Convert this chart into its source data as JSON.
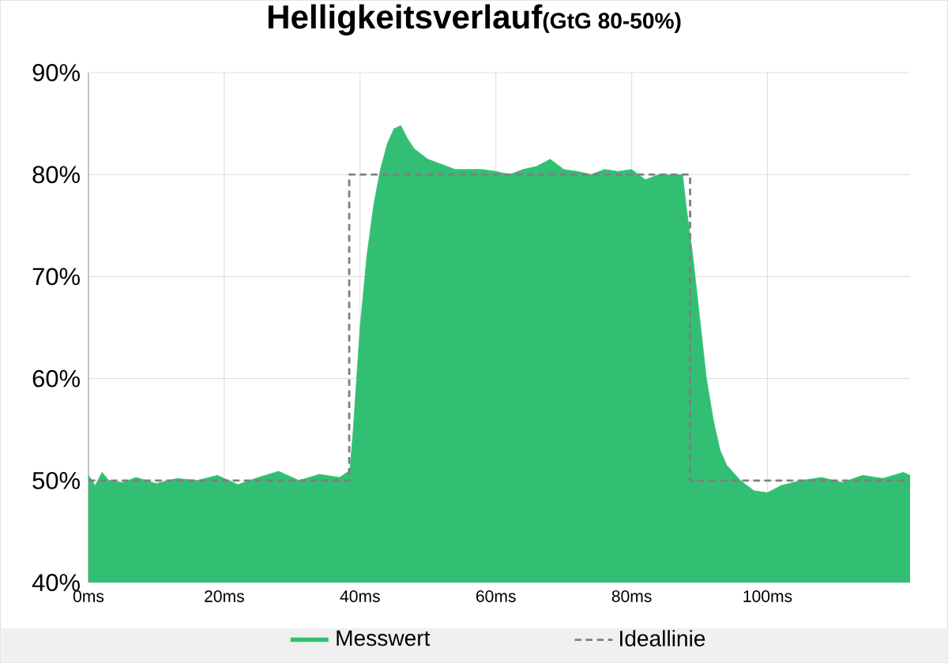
{
  "chart_data": {
    "type": "area",
    "title": "Helligkeitsverlauf",
    "subtitle": "(GtG 80-50%)",
    "xlim": [
      0,
      121
    ],
    "ylim": [
      40,
      90
    ],
    "xticks": [
      {
        "value": 0,
        "label": "0ms"
      },
      {
        "value": 20,
        "label": "20ms"
      },
      {
        "value": 40,
        "label": "40ms"
      },
      {
        "value": 60,
        "label": "60ms"
      },
      {
        "value": 80,
        "label": "80ms"
      },
      {
        "value": 100,
        "label": "100ms"
      }
    ],
    "yticks": [
      {
        "value": 40,
        "label": "40%"
      },
      {
        "value": 50,
        "label": "50%"
      },
      {
        "value": 60,
        "label": "60%"
      },
      {
        "value": 70,
        "label": "70%"
      },
      {
        "value": 80,
        "label": "80%"
      },
      {
        "value": 90,
        "label": "90%"
      }
    ],
    "grid": true,
    "legend": "bottom",
    "series": [
      {
        "name": "Messwert",
        "color": "#33bf73",
        "x": [
          0,
          1,
          2,
          3,
          5,
          7,
          10,
          13,
          16,
          19,
          22,
          25,
          28,
          31,
          34,
          37,
          38.5,
          39,
          40,
          41,
          42,
          43,
          44,
          45,
          46,
          47,
          48,
          50,
          52,
          54,
          56,
          58,
          60,
          62,
          64,
          66,
          68,
          70,
          72,
          74,
          76,
          78,
          80,
          82,
          84,
          86,
          87.5,
          88,
          89,
          90,
          91,
          92,
          93,
          94,
          96,
          98,
          100,
          102,
          105,
          108,
          111,
          114,
          117,
          120,
          121
        ],
        "values": [
          50.5,
          49.5,
          50.8,
          50,
          49.8,
          50.3,
          49.7,
          50.2,
          50,
          50.5,
          49.6,
          50.3,
          50.9,
          50,
          50.6,
          50.3,
          51,
          55,
          65,
          72,
          77,
          80.5,
          83,
          84.5,
          84.8,
          83.5,
          82.5,
          81.5,
          81,
          80.5,
          80.5,
          80.5,
          80.3,
          80,
          80.5,
          80.8,
          81.5,
          80.5,
          80.3,
          80,
          80.5,
          80.3,
          80.5,
          79.5,
          80,
          80,
          80,
          77,
          72,
          66,
          60,
          56,
          53,
          51.5,
          50,
          49,
          48.8,
          49.5,
          50,
          50.3,
          49.8,
          50.5,
          50.2,
          50.8,
          50.5
        ]
      },
      {
        "name": "Ideallinie",
        "type": "line",
        "color": "#7f7f7f",
        "line_style": "dashed",
        "x": [
          0,
          38.4,
          38.4,
          88.6,
          88.6,
          121
        ],
        "values": [
          50,
          50,
          80,
          80,
          50,
          50
        ]
      }
    ]
  }
}
